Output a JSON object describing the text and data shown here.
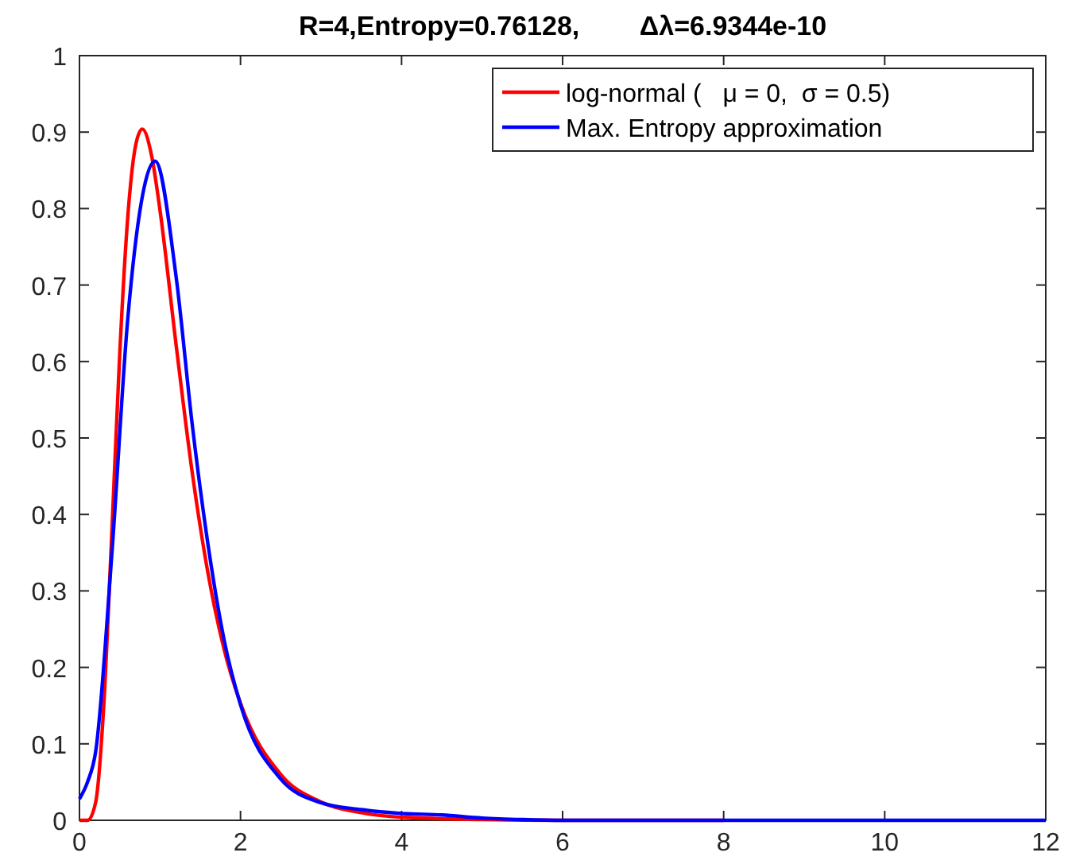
{
  "chart_data": {
    "type": "line",
    "title": "R=4,Entropy=0.76128,        Δλ=6.9344e-10",
    "xlim": [
      0,
      12
    ],
    "xticks": [
      0,
      2,
      4,
      6,
      8,
      10,
      12
    ],
    "ylim": [
      0,
      1
    ],
    "yticks": [
      0,
      0.1,
      0.2,
      0.3,
      0.4,
      0.5,
      0.6,
      0.7,
      0.8,
      0.9,
      1
    ],
    "legend": "top right",
    "grid": false,
    "marker": "none",
    "line_style": "solid",
    "series": [
      {
        "name": "log-normal (   μ = 0,  σ = 0.5)",
        "color": "#ff0000",
        "x": [
          0,
          0.1,
          0.2,
          0.3,
          0.4,
          0.5,
          0.6,
          0.7,
          0.78,
          0.9,
          1,
          1.2,
          1.4,
          1.6,
          1.8,
          2,
          2.5,
          3,
          3.5,
          4,
          5,
          6,
          8
        ],
        "values": [
          0,
          0,
          0.023,
          0.147,
          0.372,
          0.61,
          0.789,
          0.884,
          0.904,
          0.867,
          0.798,
          0.622,
          0.455,
          0.321,
          0.222,
          0.153,
          0.06,
          0.024,
          0.01,
          0.004,
          0.001,
          0,
          0
        ]
      },
      {
        "name": "Max. Entropy approximation",
        "color": "#0000ff",
        "x": [
          0,
          0.1,
          0.2,
          0.4,
          0.6,
          0.8,
          0.94,
          1.2,
          1.4,
          1.6,
          1.8,
          2,
          2.5,
          3,
          3.5,
          4,
          4.5,
          5,
          5.5,
          6,
          8,
          10,
          12
        ],
        "values": [
          0.028,
          0.05,
          0.089,
          0.345,
          0.656,
          0.826,
          0.862,
          0.711,
          0.518,
          0.358,
          0.234,
          0.151,
          0.054,
          0.023,
          0.014,
          0.009,
          0.007,
          0.003,
          0.001,
          0,
          0,
          0,
          0
        ]
      }
    ]
  }
}
